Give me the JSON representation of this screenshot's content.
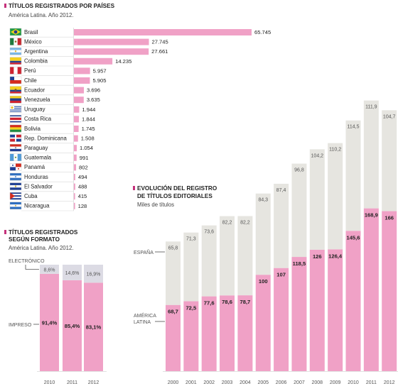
{
  "colors": {
    "pink": "#f0a1c6",
    "grey": "#e6e5e0",
    "lilac": "#dcdbe4",
    "magenta": "#c5317b",
    "rule": "#d9d9d9"
  },
  "chart_data": [
    {
      "type": "bar",
      "title": "TÍTULOS REGISTRADOS POR PAÍSES",
      "subtitle": "América Latina. Año 2012.",
      "categories": [
        "Brasil",
        "México",
        "Argentina",
        "Colombia",
        "Perú",
        "Chile",
        "Ecuador",
        "Venezuela",
        "Uruguay",
        "Costa Rica",
        "Bolivia",
        "Rep. Dominicana",
        "Paraguay",
        "Guatemala",
        "Panamá",
        "Honduras",
        "El Salvador",
        "Cuba",
        "Nicaragua"
      ],
      "values": [
        65745,
        27745,
        27661,
        14235,
        5957,
        5905,
        3696,
        3635,
        1944,
        1844,
        1745,
        1508,
        1054,
        991,
        802,
        494,
        488,
        415,
        128
      ],
      "value_labels": [
        "65.745",
        "27.745",
        "27.661",
        "14.235",
        "5.957",
        "5.905",
        "3.696",
        "3.635",
        "1.944",
        "1.844",
        "1.745",
        "1.508",
        "1.054",
        "991",
        "802",
        "494",
        "488",
        "415",
        "128"
      ],
      "flag_icons": [
        "brazil-flag-icon",
        "mexico-flag-icon",
        "argentina-flag-icon",
        "colombia-flag-icon",
        "peru-flag-icon",
        "chile-flag-icon",
        "ecuador-flag-icon",
        "venezuela-flag-icon",
        "uruguay-flag-icon",
        "costa-rica-flag-icon",
        "bolivia-flag-icon",
        "dominican-republic-flag-icon",
        "paraguay-flag-icon",
        "guatemala-flag-icon",
        "panama-flag-icon",
        "honduras-flag-icon",
        "el-salvador-flag-icon",
        "cuba-flag-icon",
        "nicaragua-flag-icon"
      ],
      "orientation": "horizontal",
      "xlim": [
        0,
        65745
      ]
    },
    {
      "type": "bar",
      "stacked": true,
      "percent": true,
      "title_lines": [
        "TÍTULOS REGISTRADOS",
        "SEGÚN FORMATO"
      ],
      "subtitle": "América Latina. Año 2012.",
      "categories": [
        "2010",
        "2011",
        "2012"
      ],
      "series": [
        {
          "name": "IMPRESO",
          "values": [
            91.4,
            85.4,
            83.1
          ],
          "labels": [
            "91,4%",
            "85,4%",
            "83,1%"
          ]
        },
        {
          "name": "ELECTRÓNICO",
          "values": [
            8.6,
            14.6,
            16.9
          ],
          "labels": [
            "8,6%",
            "14,6%",
            "16,9%"
          ]
        }
      ],
      "ylim": [
        0,
        100
      ]
    },
    {
      "type": "bar",
      "stacked": true,
      "title_lines": [
        "EVOLUCIÓN DEL REGISTRO",
        "DE TÍTULOS EDITORIALES"
      ],
      "subtitle": "Miles de títulos",
      "categories": [
        "2000",
        "2001",
        "2002",
        "2003",
        "2004",
        "2005",
        "2006",
        "2007",
        "2008",
        "2009",
        "2010",
        "2011",
        "2012"
      ],
      "series": [
        {
          "name": "AMÉRICA LATINA",
          "name_lines": [
            "AMÉRICA",
            "LATINA"
          ],
          "values": [
            68.7,
            72.5,
            77.6,
            78.6,
            78.7,
            100,
            107,
            118.5,
            126,
            126.4,
            145.6,
            168.9,
            166
          ],
          "labels": [
            "68,7",
            "72,5",
            "77,6",
            "78,6",
            "78,7",
            "100",
            "107",
            "118,5",
            "126",
            "126,4",
            "145,6",
            "168,9",
            "166"
          ]
        },
        {
          "name": "ESPAÑA",
          "values": [
            65.8,
            71.3,
            73.6,
            82.2,
            82.2,
            84.3,
            87.4,
            96.8,
            104.2,
            110.2,
            114.5,
            111.9,
            104.7
          ],
          "labels": [
            "65,8",
            "71,3",
            "73,6",
            "82,2",
            "82,2",
            "84,3",
            "87,4",
            "96,8",
            "104,2",
            "110,2",
            "114,5",
            "111,9",
            "104,7"
          ]
        }
      ],
      "ylim": [
        0,
        282
      ]
    }
  ]
}
